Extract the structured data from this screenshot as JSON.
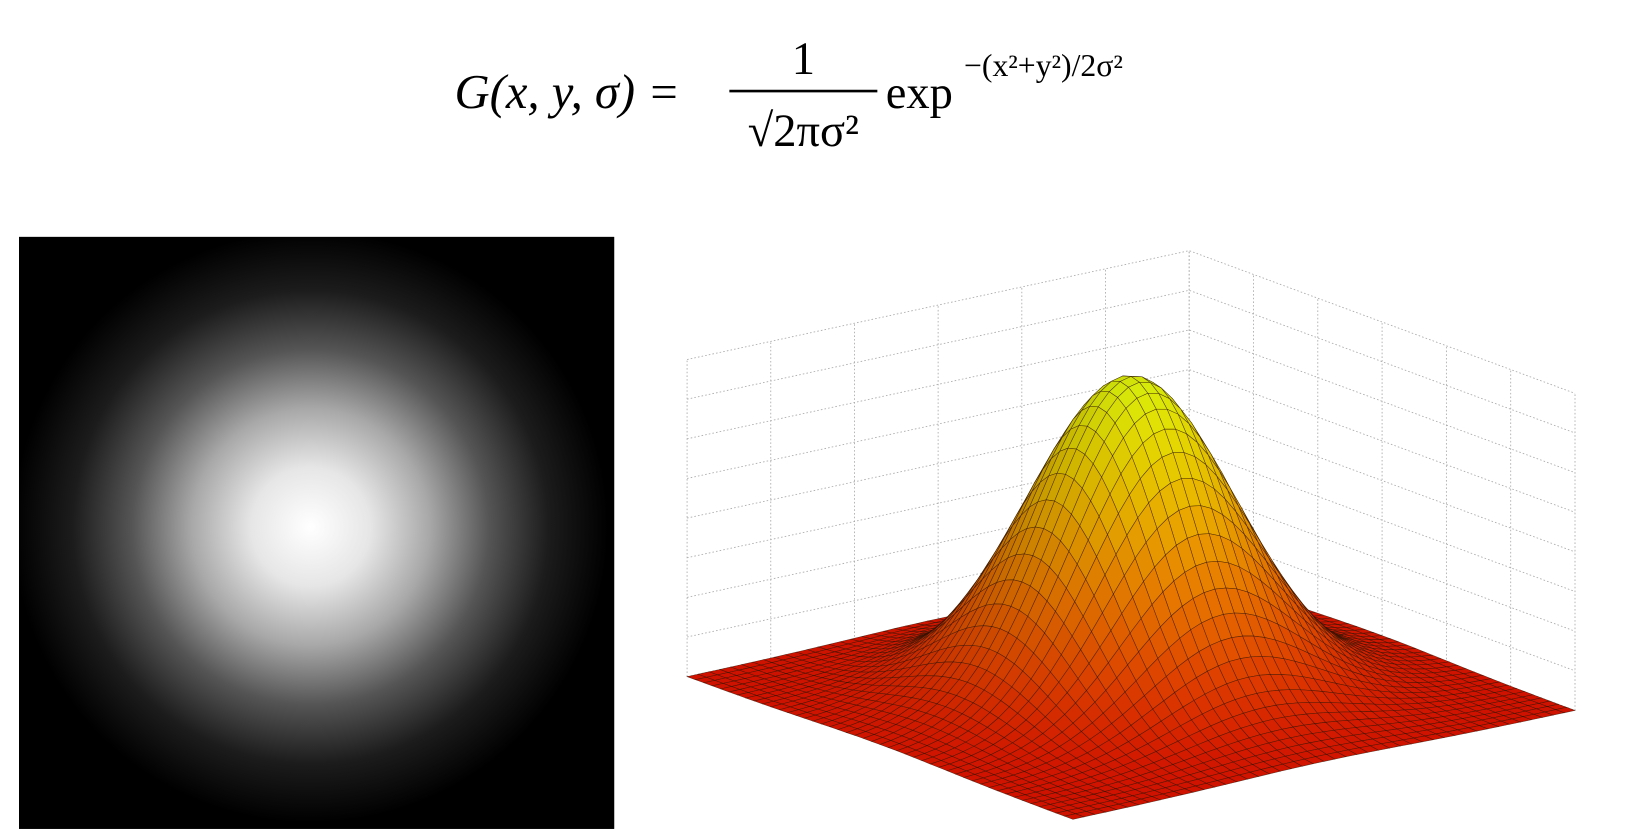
{
  "formula": {
    "lhs": "G(x, y, σ) =",
    "numerator": "1",
    "denominator": "√2πσ²",
    "function": "exp",
    "exponent": "−(x²+y²)/2σ²"
  }
}
